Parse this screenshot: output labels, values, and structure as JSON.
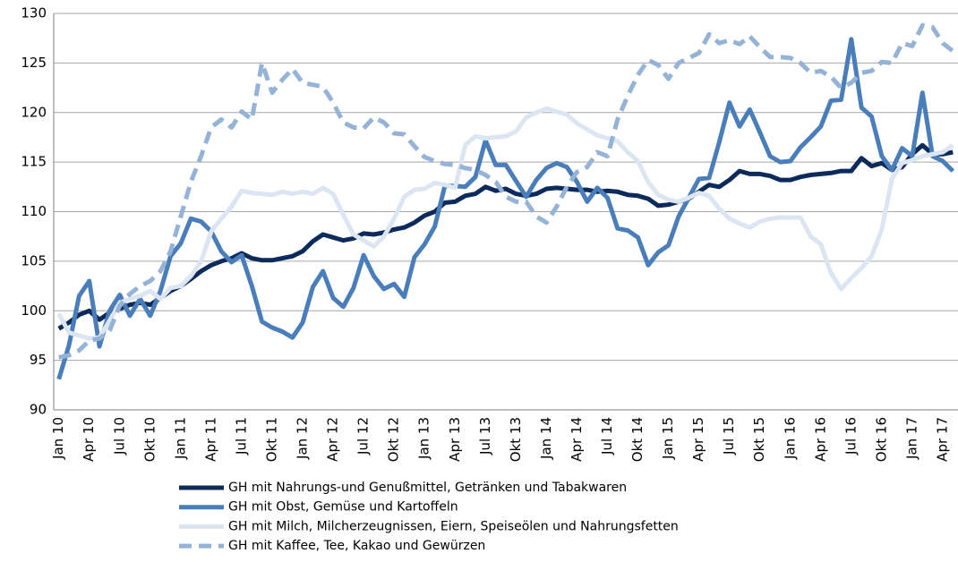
{
  "chart_data": {
    "type": "line",
    "categories": [
      "Jan 10",
      null,
      null,
      "Apr 10",
      null,
      null,
      "Jul 10",
      null,
      null,
      "Okt 10",
      null,
      null,
      "Jan 11",
      null,
      null,
      "Apr 11",
      null,
      null,
      "Jul 11",
      null,
      null,
      "Okt 11",
      null,
      null,
      "Jan 12",
      null,
      null,
      "Apr 12",
      null,
      null,
      "Jul 12",
      null,
      null,
      "Okt 12",
      null,
      null,
      "Jan 13",
      null,
      null,
      "Apr 13",
      null,
      null,
      "Jul 13",
      null,
      null,
      "Okt 13",
      null,
      null,
      "Jan 14",
      null,
      null,
      "Apr 14",
      null,
      null,
      "Jul 14",
      null,
      null,
      "Okt 14",
      null,
      null,
      "Jan 15",
      null,
      null,
      "Apr 15",
      null,
      null,
      "Jul 15",
      null,
      null,
      "Okt 15",
      null,
      null,
      "Jan 16",
      null,
      null,
      "Apr 16",
      null,
      null,
      "Jul 16",
      null,
      null,
      "Okt 16",
      null,
      null,
      "Jan 17",
      null,
      null,
      "Apr 17",
      null
    ],
    "series": [
      {
        "name": "GH mit Nahrungs-und Genußmittel, Getränken und Tabakwaren",
        "color": "#0c2a5c",
        "values": [
          98.2,
          98.8,
          99.6,
          100.0,
          99.1,
          99.8,
          100.2,
          100.6,
          100.8,
          100.6,
          101.3,
          102.0,
          102.5,
          103.2,
          104.0,
          104.6,
          105.0,
          105.3,
          105.8,
          105.3,
          105.1,
          105.1,
          105.3,
          105.5,
          106.0,
          107.0,
          107.7,
          107.4,
          107.1,
          107.3,
          107.8,
          107.7,
          107.9,
          108.2,
          108.4,
          108.9,
          109.6,
          110.0,
          110.9,
          111.0,
          111.6,
          111.8,
          112.5,
          112.1,
          112.3,
          111.8,
          111.6,
          111.8,
          112.3,
          112.4,
          112.3,
          112.2,
          112.2,
          112.0,
          112.1,
          112.0,
          111.7,
          111.6,
          111.3,
          110.6,
          110.7,
          111.0,
          111.3,
          112.0,
          112.7,
          112.5,
          113.2,
          114.1,
          113.8,
          113.8,
          113.6,
          113.2,
          113.2,
          113.5,
          113.7,
          113.8,
          113.9,
          114.1,
          114.1,
          115.4,
          114.6,
          114.9,
          114.2,
          114.5,
          115.8,
          116.7,
          115.8,
          115.8,
          116.0
        ]
      },
      {
        "name": "GH mit Obst, Gemüse und Kartoffeln",
        "color": "#4a7ebb",
        "values": [
          93.1,
          96.5,
          101.5,
          103.0,
          96.4,
          100.0,
          101.6,
          99.5,
          101.2,
          99.5,
          102.0,
          105.5,
          106.8,
          109.3,
          109.0,
          108.0,
          106.0,
          104.9,
          105.6,
          102.5,
          98.9,
          98.3,
          97.9,
          97.3,
          98.8,
          102.4,
          104.0,
          101.3,
          100.4,
          102.3,
          105.6,
          103.5,
          102.2,
          102.7,
          101.4,
          105.4,
          106.7,
          108.5,
          112.6,
          112.6,
          112.5,
          113.5,
          117.2,
          114.7,
          114.7,
          113.1,
          111.5,
          113.2,
          114.4,
          114.9,
          114.5,
          113.0,
          111.0,
          112.4,
          111.4,
          108.3,
          108.1,
          107.4,
          104.6,
          105.9,
          106.6,
          109.5,
          111.4,
          113.3,
          113.4,
          117.0,
          121.0,
          118.6,
          120.3,
          118.0,
          115.6,
          115.0,
          115.1,
          116.5,
          117.5,
          118.6,
          121.2,
          121.3,
          127.4,
          120.5,
          119.6,
          115.6,
          114.2,
          116.4,
          115.6,
          122.0,
          115.6,
          115.1,
          114.1
        ]
      },
      {
        "name": "GH mit Milch, Milcherzeugnissen, Eiern, Speiseölen und Nahrungsfetten",
        "color": "#dce6f2",
        "values": [
          99.7,
          97.8,
          97.5,
          97.2,
          97.3,
          99.0,
          100.8,
          101.2,
          101.5,
          102.0,
          101.2,
          102.3,
          102.5,
          103.5,
          105.0,
          108.0,
          109.3,
          110.5,
          112.1,
          111.9,
          111.8,
          111.7,
          112.0,
          111.8,
          112.0,
          111.8,
          112.4,
          111.8,
          109.7,
          107.7,
          107.1,
          106.5,
          107.5,
          109.3,
          111.5,
          112.2,
          112.3,
          112.9,
          112.7,
          112.4,
          116.7,
          117.6,
          117.4,
          117.5,
          117.6,
          118.1,
          119.5,
          120.0,
          120.4,
          120.1,
          119.8,
          118.9,
          118.3,
          117.7,
          117.4,
          117.1,
          116.0,
          115.1,
          113.0,
          111.7,
          111.2,
          111.0,
          111.4,
          111.9,
          111.6,
          110.3,
          109.3,
          108.8,
          108.4,
          109.0,
          109.3,
          109.4,
          109.4,
          109.4,
          107.5,
          106.7,
          103.8,
          102.2,
          103.3,
          104.3,
          105.5,
          108.2,
          113.3,
          114.9,
          115.2,
          115.6,
          115.8,
          116.0,
          116.7
        ]
      },
      {
        "name": "GH mit Kaffee, Tee, Kakao und Gewürzen",
        "color": "#95b3d7",
        "dashed": true,
        "values": [
          95.3,
          95.5,
          96.0,
          97.0,
          97.2,
          98.0,
          100.5,
          101.7,
          102.5,
          103.0,
          104.0,
          106.0,
          109.5,
          113.0,
          115.6,
          118.5,
          119.3,
          118.5,
          120.1,
          119.3,
          125.0,
          122.0,
          123.3,
          124.4,
          123.0,
          122.8,
          122.6,
          121.0,
          119.0,
          118.5,
          118.4,
          119.5,
          119.0,
          117.9,
          117.8,
          116.6,
          115.5,
          115.1,
          114.8,
          114.7,
          114.4,
          114.2,
          113.7,
          113.0,
          111.5,
          111.0,
          111.0,
          109.5,
          108.9,
          110.5,
          112.5,
          114.0,
          114.5,
          116.0,
          115.6,
          119.3,
          121.7,
          123.8,
          125.3,
          124.8,
          123.4,
          125.0,
          125.5,
          126.0,
          127.9,
          127.0,
          127.3,
          126.9,
          127.7,
          126.6,
          125.6,
          125.6,
          125.5,
          125.0,
          124.0,
          124.2,
          123.6,
          122.5,
          123.0,
          124.0,
          124.2,
          125.1,
          125.0,
          127.0,
          126.7,
          128.8,
          128.6,
          127.0,
          126.2
        ]
      }
    ],
    "ylim": [
      90,
      130
    ],
    "yticks": [
      90,
      95,
      100,
      105,
      110,
      115,
      120,
      125,
      130
    ],
    "grid": true,
    "legend": "bottom"
  }
}
